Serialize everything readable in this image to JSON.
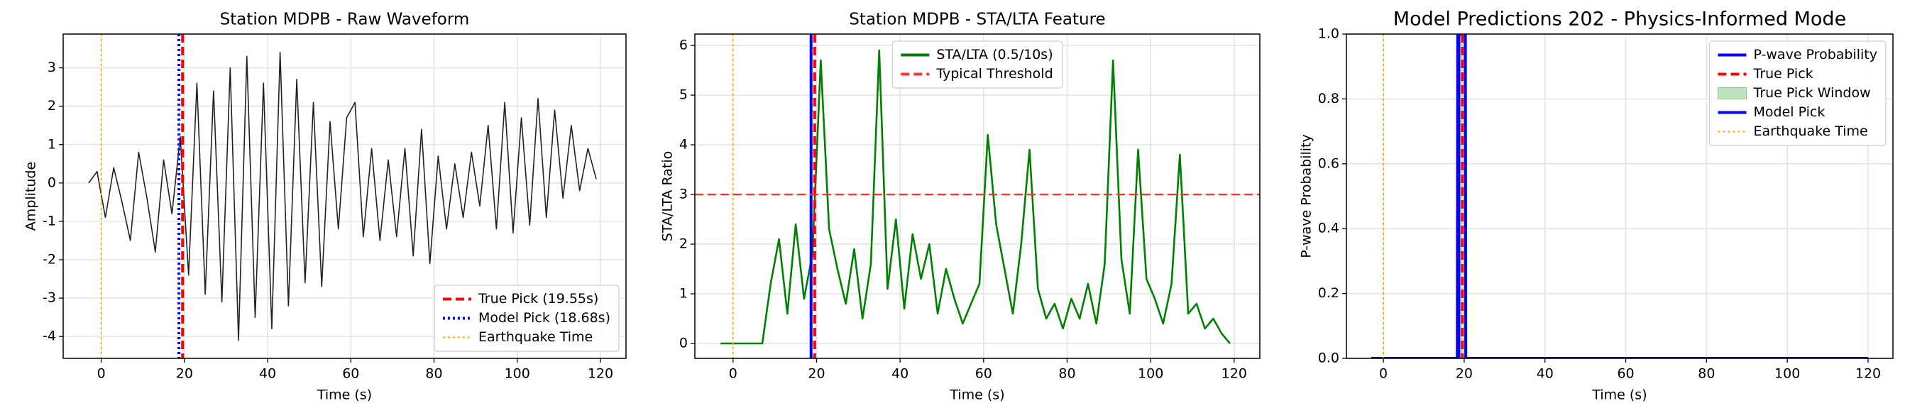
{
  "chart_data": [
    {
      "type": "line",
      "title": "Station MDPB - Raw Waveform",
      "xlabel": "Time (s)",
      "ylabel": "Amplitude",
      "xlim": [
        -9.15,
        126.15
      ],
      "xticks": [
        0,
        20,
        40,
        60,
        80,
        100,
        120
      ],
      "ylim": [
        -4.57,
        3.88
      ],
      "yticks": [
        -4,
        -3,
        -2,
        -1,
        0,
        1,
        2,
        3
      ],
      "grid": true,
      "legend": "lower right",
      "x": [
        -3,
        -1,
        1,
        3,
        5,
        7,
        9,
        11,
        13,
        15,
        17,
        19,
        21,
        23,
        25,
        27,
        29,
        31,
        33,
        35,
        37,
        39,
        41,
        43,
        45,
        47,
        49,
        51,
        53,
        55,
        57,
        59,
        61,
        63,
        65,
        67,
        69,
        71,
        73,
        75,
        77,
        79,
        81,
        83,
        85,
        87,
        89,
        91,
        93,
        95,
        97,
        99,
        101,
        103,
        105,
        107,
        109,
        111,
        113,
        115,
        117,
        119
      ],
      "series": [
        {
          "color": "#222222",
          "linestyle": "solid",
          "values": [
            0,
            0.3,
            -0.9,
            0.4,
            -0.5,
            -1.5,
            0.8,
            -0.4,
            -1.8,
            0.6,
            -0.8,
            1.2,
            -2.4,
            2.6,
            -2.9,
            2.4,
            -3.1,
            3.0,
            -4.1,
            3.3,
            -3.5,
            2.6,
            -3.8,
            3.4,
            -3.2,
            2.7,
            -2.6,
            2.1,
            -2.7,
            1.6,
            -1.2,
            1.7,
            2.1,
            -1.4,
            0.9,
            -1.5,
            0.6,
            -1.4,
            0.9,
            -1.9,
            1.4,
            -2.1,
            0.7,
            -1.2,
            0.5,
            -0.9,
            0.8,
            -0.6,
            1.5,
            -1.2,
            2.1,
            -1.3,
            1.7,
            -1.1,
            2.2,
            -0.9,
            1.9,
            -0.4,
            1.5,
            -0.2,
            0.9,
            0.1
          ]
        }
      ],
      "overlays": [
        {
          "kind": "vline",
          "name": "True Pick (19.55s)",
          "value": 19.55,
          "color": "#ff0000",
          "linestyle": "dashed"
        },
        {
          "kind": "vline",
          "name": "Model Pick (18.68s)",
          "value": 18.68,
          "color": "#0000ff",
          "linestyle": "dotted"
        },
        {
          "kind": "vline",
          "name": "Earthquake Time",
          "value": 0,
          "color": "#ffa500",
          "linestyle": "dotted"
        }
      ]
    },
    {
      "type": "line",
      "title": "Station MDPB - STA/LTA Feature",
      "xlabel": "Time (s)",
      "ylabel": "STA/LTA Ratio",
      "xlim": [
        -9.15,
        126.15
      ],
      "xticks": [
        0,
        20,
        40,
        60,
        80,
        100,
        120
      ],
      "ylim": [
        -0.3,
        6.23
      ],
      "yticks": [
        0,
        1,
        2,
        3,
        4,
        5,
        6
      ],
      "grid": true,
      "legend": "upper center",
      "x": [
        -3,
        -1,
        1,
        3,
        5,
        7,
        9,
        11,
        13,
        15,
        17,
        19,
        21,
        23,
        25,
        27,
        29,
        31,
        33,
        35,
        37,
        39,
        41,
        43,
        45,
        47,
        49,
        51,
        53,
        55,
        57,
        59,
        61,
        63,
        65,
        67,
        69,
        71,
        73,
        75,
        77,
        79,
        81,
        83,
        85,
        87,
        89,
        91,
        93,
        95,
        97,
        99,
        101,
        103,
        105,
        107,
        109,
        111,
        113,
        115,
        117,
        119
      ],
      "series": [
        {
          "name": "STA/LTA (0.5/10s)",
          "color": "#008000",
          "linestyle": "solid",
          "values": [
            0,
            0,
            0,
            0,
            0,
            0,
            1.2,
            2.1,
            0.6,
            2.4,
            0.9,
            1.8,
            5.7,
            2.3,
            1.5,
            0.8,
            1.9,
            0.5,
            1.6,
            5.9,
            1.1,
            2.5,
            0.7,
            2.2,
            1.3,
            2.0,
            0.6,
            1.5,
            0.9,
            0.4,
            0.8,
            1.2,
            4.2,
            2.4,
            1.5,
            0.6,
            2.0,
            3.9,
            1.1,
            0.5,
            0.8,
            0.3,
            0.9,
            0.5,
            1.2,
            0.4,
            1.6,
            5.7,
            1.7,
            0.6,
            3.9,
            1.3,
            0.9,
            0.4,
            1.2,
            3.8,
            0.6,
            0.8,
            0.3,
            0.5,
            0.2,
            0
          ]
        }
      ],
      "overlays": [
        {
          "kind": "vline",
          "value": 0,
          "color": "#ffa500",
          "linestyle": "dotted"
        },
        {
          "kind": "vline",
          "value": 18.68,
          "color": "#0000ff",
          "linestyle": "solid"
        },
        {
          "kind": "vline",
          "value": 19.55,
          "color": "#ff0000",
          "linestyle": "dashed"
        },
        {
          "kind": "hline",
          "name": "Typical Threshold",
          "value": 3,
          "color": "#ff3333",
          "linestyle": "dashed"
        }
      ]
    },
    {
      "type": "line",
      "title": "Model Predictions 202 - Physics-Informed Mode",
      "xlabel": "Time (s)",
      "ylabel": "P-wave Probability",
      "xlim": [
        -9.15,
        126.15
      ],
      "xticks": [
        0,
        20,
        40,
        60,
        80,
        100,
        120
      ],
      "ylim": [
        0,
        1
      ],
      "yticks": [
        {
          "value": 0,
          "label": "0.0"
        },
        0.2,
        0.4,
        0.6,
        0.8,
        {
          "value": 1,
          "label": "1.0"
        }
      ],
      "grid": true,
      "legend": "upper right",
      "x": [
        -3,
        18.3,
        18.4,
        20.3,
        20.4,
        120
      ],
      "series": [
        {
          "name": "P-wave Probability",
          "color": "#0000ff",
          "linestyle": "solid",
          "values": [
            0,
            0,
            1,
            1,
            0,
            0
          ]
        }
      ],
      "overlays": [
        {
          "kind": "vline",
          "name": "True Pick",
          "value": 19.55,
          "color": "#ff0000",
          "linestyle": "dashed"
        },
        {
          "kind": "span",
          "name": "True Pick Window",
          "range": [
            18.55,
            20.55
          ],
          "color": "#2ca02c"
        },
        {
          "kind": "vline",
          "name": "Model Pick",
          "value": 18.68,
          "color": "#0000ff",
          "linestyle": "solid"
        },
        {
          "kind": "vline",
          "name": "Earthquake Time",
          "value": 0,
          "color": "#ffa500",
          "linestyle": "dotted"
        }
      ]
    }
  ]
}
